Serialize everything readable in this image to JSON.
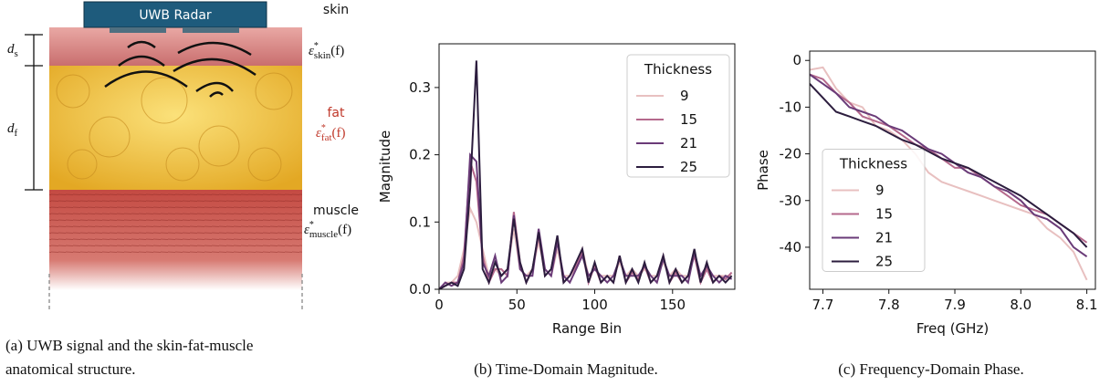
{
  "illustration": {
    "radar": "UWB Radar",
    "ds": [
      "d",
      "s"
    ],
    "df": [
      "d",
      "f"
    ],
    "skin": "skin",
    "skin_eps": [
      "ε",
      "*",
      "skin",
      "(f)"
    ],
    "fat": "fat",
    "fat_eps": [
      "ε",
      "*",
      "fat",
      "(f)"
    ],
    "muscle": "muscle",
    "muscle_eps": [
      "ε",
      "*",
      "muscle",
      "(f)"
    ]
  },
  "captions": {
    "a": [
      "(a) UWB signal and the skin-fat-muscle",
      "anatomical structure."
    ],
    "b": "(b) Time-Domain Magnitude.",
    "c": "(c) Frequency-Domain Phase."
  },
  "chart_data": [
    {
      "type": "line",
      "xlabel": "Range Bin",
      "ylabel": "Magnitude",
      "legend_title": "Thickness",
      "legend": "upper right",
      "x": [
        0,
        4,
        8,
        12,
        16,
        20,
        24,
        28,
        32,
        36,
        40,
        44,
        48,
        52,
        56,
        60,
        64,
        68,
        72,
        76,
        80,
        84,
        88,
        92,
        96,
        100,
        104,
        108,
        112,
        116,
        120,
        124,
        128,
        132,
        136,
        140,
        144,
        148,
        152,
        156,
        160,
        164,
        168,
        172,
        176,
        180,
        184,
        188
      ],
      "xlim": [
        0,
        190
      ],
      "xticks": [
        0,
        50,
        100,
        150
      ],
      "ylim": [
        0,
        0.365
      ],
      "yticks": [
        {
          "value": 0,
          "label": "0.0"
        },
        0.1,
        0.2,
        0.3
      ],
      "series": [
        {
          "name": "9",
          "color": "#e8c0c0",
          "values": [
            0,
            0.01,
            0.01,
            0.02,
            0.06,
            0.12,
            0.1,
            0.06,
            0.02,
            0.03,
            0.02,
            0.03,
            0.09,
            0.03,
            0.02,
            0.03,
            0.07,
            0.03,
            0.02,
            0.06,
            0.02,
            0.02,
            0.03,
            0.06,
            0.02,
            0.03,
            0.02,
            0.02,
            0.02,
            0.04,
            0.02,
            0.03,
            0.02,
            0.03,
            0.02,
            0.02,
            0.04,
            0.02,
            0.03,
            0.02,
            0.02,
            0.05,
            0.02,
            0.03,
            0.02,
            0.02,
            0.02,
            0.02
          ]
        },
        {
          "name": "15",
          "color": "#b5698c",
          "values": [
            0,
            0.005,
            0.01,
            0.01,
            0.05,
            0.19,
            0.16,
            0.05,
            0.01,
            0.03,
            0.03,
            0.02,
            0.115,
            0.04,
            0.01,
            0.03,
            0.08,
            0.02,
            0.03,
            0.075,
            0.01,
            0.02,
            0.035,
            0.055,
            0.01,
            0.035,
            0.01,
            0.02,
            0.01,
            0.05,
            0.01,
            0.025,
            0.015,
            0.035,
            0.01,
            0.02,
            0.05,
            0.01,
            0.025,
            0.01,
            0.02,
            0.05,
            0.01,
            0.03,
            0.01,
            0.02,
            0.015,
            0.025
          ]
        },
        {
          "name": "21",
          "color": "#6a3b78",
          "values": [
            0,
            0.01,
            0.005,
            0.01,
            0.04,
            0.2,
            0.19,
            0.04,
            0.02,
            0.05,
            0.01,
            0.02,
            0.11,
            0.03,
            0.02,
            0.02,
            0.09,
            0.03,
            0.02,
            0.07,
            0.02,
            0.01,
            0.03,
            0.05,
            0.02,
            0.03,
            0.02,
            0.01,
            0.02,
            0.045,
            0.02,
            0.02,
            0.02,
            0.035,
            0.02,
            0.01,
            0.045,
            0.02,
            0.02,
            0.02,
            0.01,
            0.055,
            0.02,
            0.035,
            0.02,
            0.01,
            0.02,
            0.015
          ]
        },
        {
          "name": "25",
          "color": "#2c1d3e",
          "values": [
            0,
            0.005,
            0.01,
            0.005,
            0.03,
            0.15,
            0.34,
            0.03,
            0.01,
            0.04,
            0.02,
            0.03,
            0.105,
            0.04,
            0.01,
            0.03,
            0.085,
            0.02,
            0.03,
            0.08,
            0.01,
            0.02,
            0.04,
            0.06,
            0.01,
            0.04,
            0.01,
            0.02,
            0.01,
            0.05,
            0.01,
            0.03,
            0.01,
            0.04,
            0.01,
            0.02,
            0.05,
            0.01,
            0.03,
            0.01,
            0.02,
            0.06,
            0.01,
            0.04,
            0.01,
            0.02,
            0.01,
            0.02
          ]
        }
      ]
    },
    {
      "type": "line",
      "xlabel": "Freq (GHz)",
      "ylabel": "Phase",
      "legend_title": "Thickness",
      "legend": "center left",
      "x": [
        7.68,
        7.7,
        7.72,
        7.74,
        7.76,
        7.78,
        7.8,
        7.82,
        7.84,
        7.86,
        7.88,
        7.9,
        7.92,
        7.94,
        7.96,
        7.98,
        8.0,
        8.02,
        8.04,
        8.06,
        8.08,
        8.1
      ],
      "xlim": [
        7.68,
        8.113
      ],
      "xticks": [
        7.7,
        7.8,
        7.9,
        {
          "value": 8,
          "label": "8.0"
        },
        8.1
      ],
      "ylim": [
        -49,
        2
      ],
      "yticks": [
        0,
        -10,
        -20,
        -30,
        -40
      ],
      "series": [
        {
          "name": "9",
          "color": "#e8c0c0",
          "values": [
            -2,
            -1.5,
            -6,
            -9,
            -10,
            -14,
            -15,
            -17,
            -20,
            -24,
            -26,
            -27,
            -28,
            -29,
            -30,
            -31,
            -32,
            -33,
            -36,
            -38,
            -41,
            -47
          ]
        },
        {
          "name": "15",
          "color": "#b5698c",
          "values": [
            -3,
            -4,
            -7,
            -9,
            -12,
            -13,
            -14,
            -16,
            -18,
            -19,
            -21,
            -23,
            -23,
            -25,
            -27,
            -29,
            -31,
            -32,
            -33,
            -35,
            -37,
            -39
          ]
        },
        {
          "name": "21",
          "color": "#6a3b78",
          "values": [
            -3,
            -5,
            -7,
            -10,
            -11,
            -12,
            -14,
            -15,
            -17,
            -19,
            -20,
            -22,
            -24,
            -25,
            -27,
            -28,
            -30,
            -33,
            -34,
            -36,
            -40,
            -42
          ]
        },
        {
          "name": "25",
          "color": "#2c1d3e",
          "values": [
            -5,
            -8,
            -11,
            -12,
            -13,
            -14,
            -15.5,
            -17,
            -18,
            -19.5,
            -21,
            -22,
            -23,
            -24.5,
            -26,
            -27.5,
            -29,
            -31,
            -33,
            -35,
            -37,
            -40
          ]
        }
      ]
    }
  ]
}
